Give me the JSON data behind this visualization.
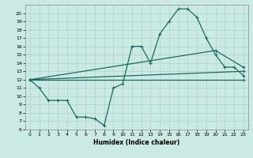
{
  "xlabel": "Humidex (Indice chaleur)",
  "bg_color": "#cceae4",
  "grid_color": "#aad4ce",
  "line_color": "#1a6b5e",
  "xlim": [
    -0.5,
    23.5
  ],
  "ylim": [
    6,
    21
  ],
  "xticks": [
    0,
    1,
    2,
    3,
    4,
    5,
    6,
    7,
    8,
    9,
    10,
    11,
    12,
    13,
    14,
    15,
    16,
    17,
    18,
    19,
    20,
    21,
    22,
    23
  ],
  "yticks": [
    6,
    7,
    8,
    9,
    10,
    11,
    12,
    13,
    14,
    15,
    16,
    17,
    18,
    19,
    20
  ],
  "line1_x": [
    0,
    1,
    2,
    3,
    4,
    5,
    6,
    7,
    8,
    9,
    10,
    11,
    12,
    13,
    14,
    15,
    16,
    17,
    18,
    19,
    20,
    21,
    22,
    23
  ],
  "line1_y": [
    12,
    11,
    9.5,
    9.5,
    9.5,
    7.5,
    7.5,
    7.3,
    6.5,
    11,
    11.5,
    16,
    16,
    14,
    17.5,
    19,
    20.5,
    20.5,
    19.5,
    17,
    15,
    13.5,
    13.5,
    12.5
  ],
  "line2_x": [
    0,
    23
  ],
  "line2_y": [
    12,
    13
  ],
  "line3_x": [
    0,
    23
  ],
  "line3_y": [
    12,
    12
  ],
  "line4_x": [
    0,
    20,
    23
  ],
  "line4_y": [
    12,
    15.5,
    13.5
  ],
  "marker": "+",
  "markersize": 3.5,
  "linewidth": 0.9
}
